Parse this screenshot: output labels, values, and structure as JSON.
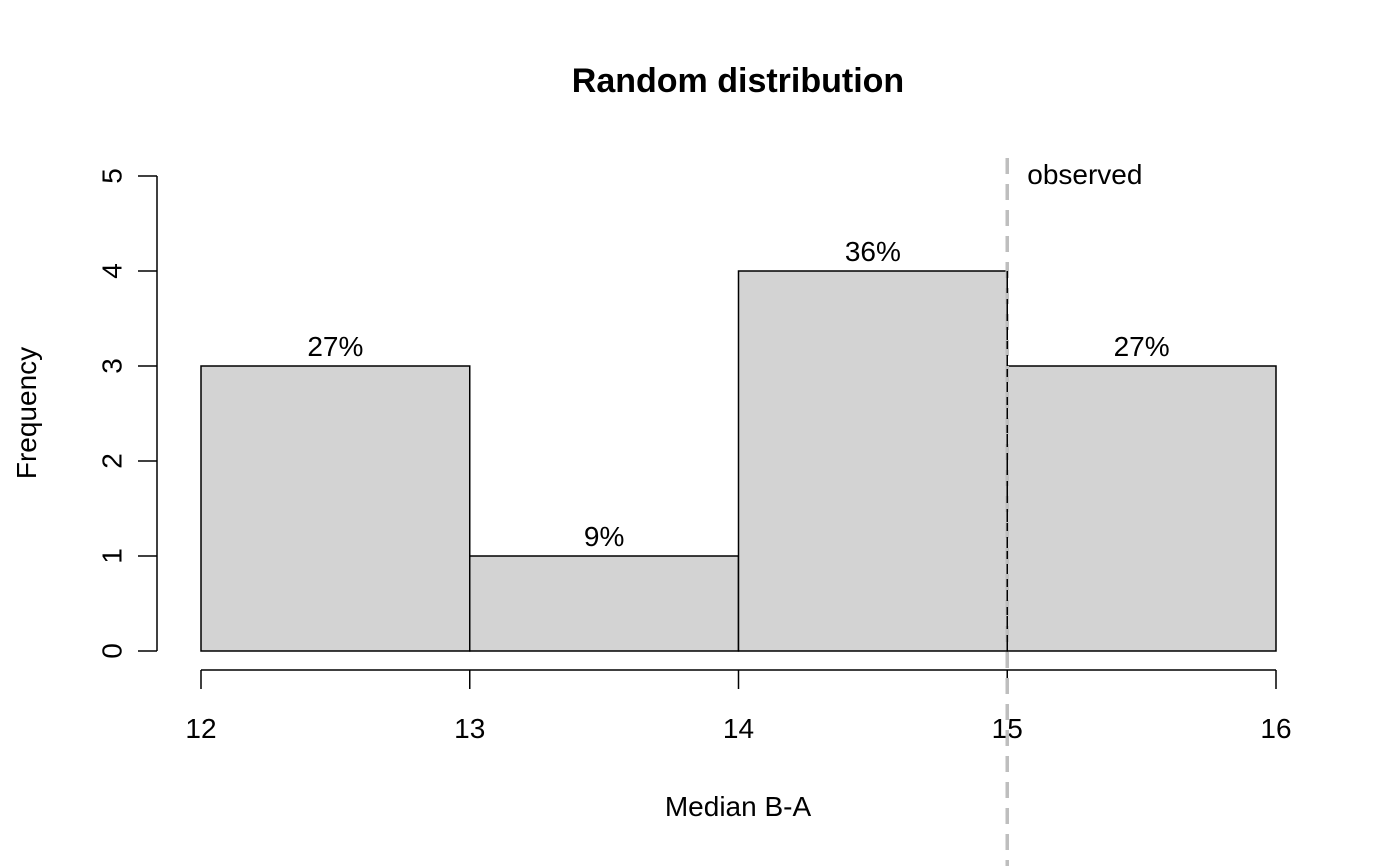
{
  "chart_data": {
    "type": "bar",
    "title": "Random distribution",
    "xlabel": "Median B-A",
    "ylabel": "Frequency",
    "bins": [
      {
        "start": 12,
        "end": 13,
        "count": 3,
        "label": "27%"
      },
      {
        "start": 13,
        "end": 14,
        "count": 1,
        "label": "9%"
      },
      {
        "start": 14,
        "end": 15,
        "count": 4,
        "label": "36%"
      },
      {
        "start": 15,
        "end": 16,
        "count": 3,
        "label": "27%"
      }
    ],
    "xlim": [
      12,
      16
    ],
    "ylim": [
      0,
      5
    ],
    "x_ticks": [
      "12",
      "13",
      "14",
      "15",
      "16"
    ],
    "y_ticks": [
      "0",
      "1",
      "2",
      "3",
      "4",
      "5"
    ],
    "observed": {
      "x": 15,
      "label": "observed"
    },
    "grid": false,
    "colors": {
      "bar_fill": "#d3d3d3",
      "bar_stroke": "#000000",
      "observed_line": "#bebebe"
    }
  }
}
